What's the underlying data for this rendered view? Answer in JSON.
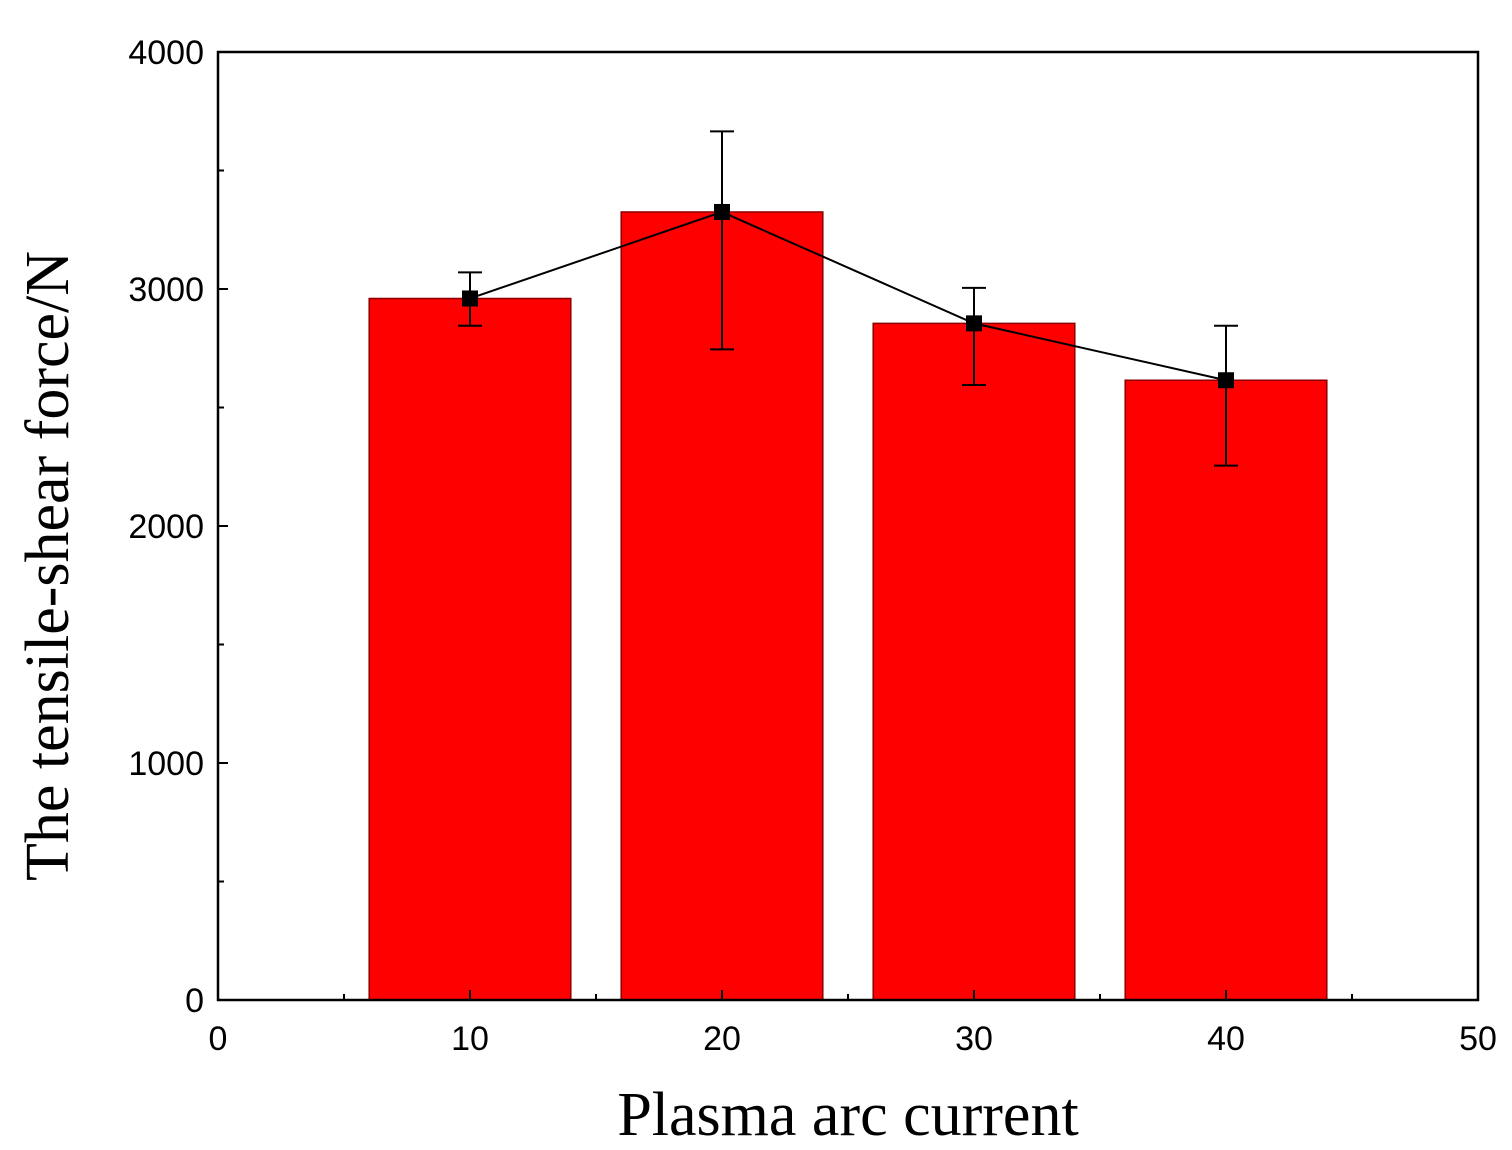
{
  "chart_data": {
    "type": "bar",
    "x": [
      10,
      20,
      30,
      40
    ],
    "values": [
      2960,
      3325,
      2855,
      2615
    ],
    "error_upper": [
      3070,
      3665,
      3005,
      2845
    ],
    "error_lower": [
      2845,
      2745,
      2595,
      2255
    ],
    "bar_width": 8,
    "overlay_line": true,
    "xlabel": "Plasma arc current",
    "ylabel": "The tensile-shear force/N",
    "xlim": [
      0,
      50
    ],
    "ylim": [
      0,
      4000
    ],
    "xticks": [
      "0",
      "10",
      "20",
      "30",
      "40",
      "50"
    ],
    "yticks": [
      "0",
      "1000",
      "2000",
      "3000",
      "4000"
    ],
    "grid": false,
    "colors": {
      "bar": "#ff0000",
      "bar_edge": "#8b0000",
      "line": "#000000",
      "marker": "#000000"
    }
  }
}
